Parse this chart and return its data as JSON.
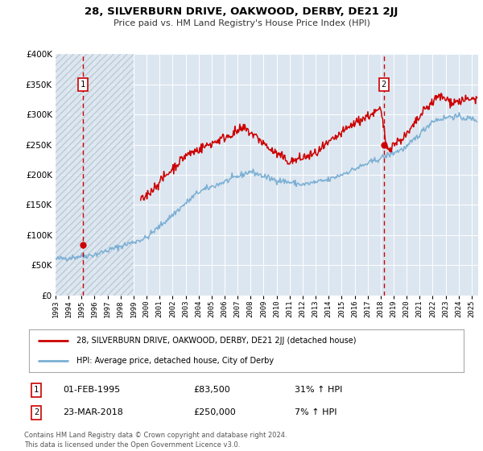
{
  "title": "28, SILVERBURN DRIVE, OAKWOOD, DERBY, DE21 2JJ",
  "subtitle": "Price paid vs. HM Land Registry's House Price Index (HPI)",
  "legend_line1": "28, SILVERBURN DRIVE, OAKWOOD, DERBY, DE21 2JJ (detached house)",
  "legend_line2": "HPI: Average price, detached house, City of Derby",
  "annotation1_label": "1",
  "annotation1_date": "01-FEB-1995",
  "annotation1_price": "£83,500",
  "annotation1_hpi": "31% ↑ HPI",
  "annotation2_label": "2",
  "annotation2_date": "23-MAR-2018",
  "annotation2_price": "£250,000",
  "annotation2_hpi": "7% ↑ HPI",
  "footer": "Contains HM Land Registry data © Crown copyright and database right 2024.\nThis data is licensed under the Open Government Licence v3.0.",
  "price_paid_color": "#cc0000",
  "hpi_color": "#7bafd4",
  "background_color": "#dce6f0",
  "plot_bg_color": "#dce6f0",
  "vline_color": "#cc0000",
  "marker_color": "#cc0000",
  "ylim": [
    0,
    400000
  ],
  "xlim_start": 1993.0,
  "xlim_end": 2025.5,
  "transaction1_x": 1995.083,
  "transaction1_y": 83500,
  "transaction2_x": 2018.23,
  "transaction2_y": 250000,
  "pp_start_year": 1999.0
}
